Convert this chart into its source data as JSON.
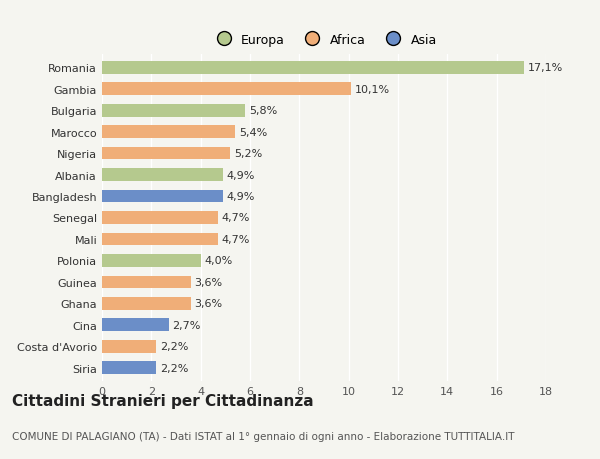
{
  "countries": [
    "Romania",
    "Gambia",
    "Bulgaria",
    "Marocco",
    "Nigeria",
    "Albania",
    "Bangladesh",
    "Senegal",
    "Mali",
    "Polonia",
    "Guinea",
    "Ghana",
    "Cina",
    "Costa d'Avorio",
    "Siria"
  ],
  "values": [
    17.1,
    10.1,
    5.8,
    5.4,
    5.2,
    4.9,
    4.9,
    4.7,
    4.7,
    4.0,
    3.6,
    3.6,
    2.7,
    2.2,
    2.2
  ],
  "labels": [
    "17,1%",
    "10,1%",
    "5,8%",
    "5,4%",
    "5,2%",
    "4,9%",
    "4,9%",
    "4,7%",
    "4,7%",
    "4,0%",
    "3,6%",
    "3,6%",
    "2,7%",
    "2,2%",
    "2,2%"
  ],
  "continents": [
    "Europa",
    "Africa",
    "Europa",
    "Africa",
    "Africa",
    "Europa",
    "Asia",
    "Africa",
    "Africa",
    "Europa",
    "Africa",
    "Africa",
    "Asia",
    "Africa",
    "Asia"
  ],
  "colors": {
    "Europa": "#b5c98e",
    "Africa": "#f0ae78",
    "Asia": "#6b8ec8"
  },
  "legend_labels": [
    "Europa",
    "Africa",
    "Asia"
  ],
  "title": "Cittadini Stranieri per Cittadinanza",
  "subtitle": "COMUNE DI PALAGIANO (TA) - Dati ISTAT al 1° gennaio di ogni anno - Elaborazione TUTTITALIA.IT",
  "xlim": [
    0,
    18
  ],
  "xticks": [
    0,
    2,
    4,
    6,
    8,
    10,
    12,
    14,
    16,
    18
  ],
  "background_color": "#f5f5f0",
  "bar_height": 0.6,
  "label_fontsize": 8,
  "title_fontsize": 11,
  "subtitle_fontsize": 7.5,
  "tick_fontsize": 8,
  "legend_fontsize": 9
}
